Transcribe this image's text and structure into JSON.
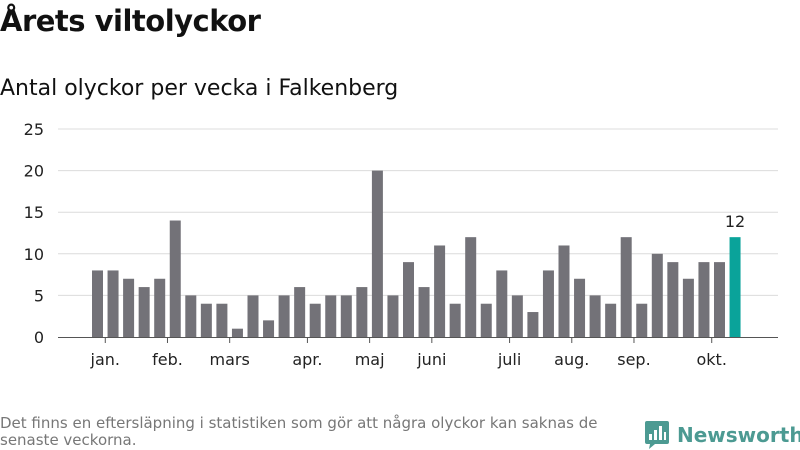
{
  "header": {
    "title": "Årets viltolyckor",
    "subtitle": "Antal olyckor per vecka i Falkenberg"
  },
  "footer": {
    "note": "Det finns en eftersläpning i statistiken som gör att några olyckor kan saknas de senaste veckorna.",
    "brand_name": "Newsworthy"
  },
  "colors": {
    "bar": "#737278",
    "highlight": "#0aa39a",
    "grid": "#dcdcdc",
    "axis": "#555555",
    "brand": "#4c9a92"
  },
  "chart_data": {
    "type": "bar",
    "title": "Årets viltolyckor",
    "subtitle": "Antal olyckor per vecka i Falkenberg",
    "xlabel": "",
    "ylabel": "",
    "ylim": [
      0,
      25
    ],
    "yticks": [
      0,
      5,
      10,
      15,
      20,
      25
    ],
    "grid": true,
    "weeks": [
      1,
      2,
      3,
      4,
      5,
      6,
      7,
      8,
      9,
      10,
      11,
      12,
      13,
      14,
      15,
      16,
      17,
      18,
      19,
      20,
      21,
      22,
      23,
      24,
      25,
      26,
      27,
      28,
      29,
      30,
      31,
      32,
      33,
      34,
      35,
      36,
      37,
      38,
      39,
      40,
      41,
      42
    ],
    "values": [
      8,
      8,
      7,
      6,
      7,
      14,
      5,
      4,
      4,
      1,
      5,
      2,
      5,
      6,
      4,
      5,
      5,
      6,
      20,
      5,
      9,
      6,
      11,
      4,
      12,
      4,
      8,
      5,
      3,
      8,
      11,
      7,
      5,
      4,
      12,
      4,
      10,
      9,
      7,
      9,
      9,
      12
    ],
    "month_labels": [
      {
        "label": "jan.",
        "week": 1.5
      },
      {
        "label": "feb.",
        "week": 5.5
      },
      {
        "label": "mars",
        "week": 9.5
      },
      {
        "label": "apr.",
        "week": 14.5
      },
      {
        "label": "maj",
        "week": 18.5
      },
      {
        "label": "juni",
        "week": 22.5
      },
      {
        "label": "juli",
        "week": 27.5
      },
      {
        "label": "aug.",
        "week": 31.5
      },
      {
        "label": "sep.",
        "week": 35.5
      },
      {
        "label": "okt.",
        "week": 40.5
      }
    ],
    "highlight_index": 41,
    "data_labels": [
      {
        "index": 41,
        "text": "12"
      }
    ]
  }
}
